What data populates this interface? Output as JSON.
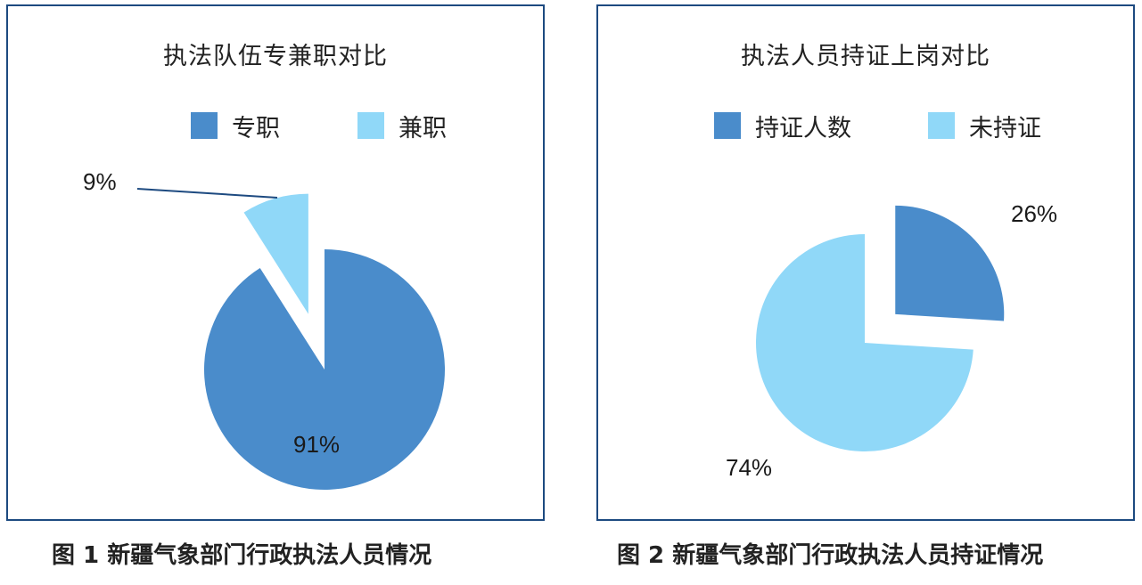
{
  "colors": {
    "dark": "#4a8ccb",
    "light": "#90d8f8",
    "border": "#1d4a80",
    "leader": "#1d4a80"
  },
  "chart_data": [
    {
      "type": "pie",
      "title": "执法队伍专兼职对比",
      "categories": [
        "专职",
        "兼职"
      ],
      "values": [
        91,
        9
      ],
      "labels": [
        "91%",
        "9%"
      ],
      "exploded": [
        false,
        true
      ],
      "legend": "top",
      "caption": "图 1  新疆气象部门行政执法人员情况"
    },
    {
      "type": "pie",
      "title": "执法人员持证上岗对比",
      "categories": [
        "持证人数",
        "未持证"
      ],
      "values": [
        26,
        74
      ],
      "labels": [
        "26%",
        "74%"
      ],
      "exploded": [
        true,
        true
      ],
      "legend": "top",
      "caption": "图 2  新疆气象部门行政执法人员持证情况"
    }
  ]
}
